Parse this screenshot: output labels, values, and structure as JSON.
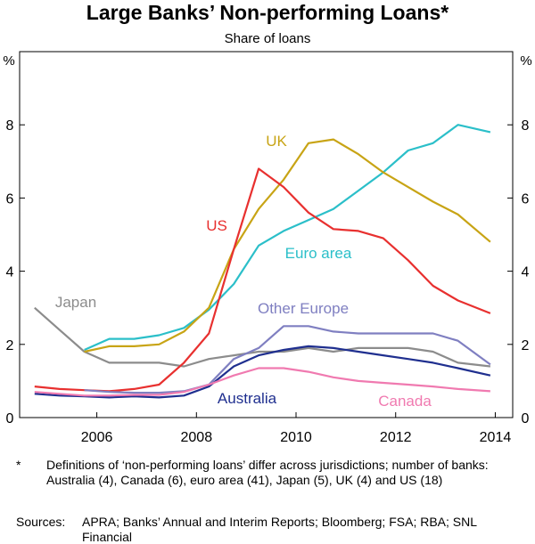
{
  "chart_data": {
    "type": "line",
    "title": "Large Banks’ Non-performing Loans*",
    "subtitle": "Share of loans",
    "y_unit": "%",
    "x": [
      2004.75,
      2005.25,
      2005.75,
      2006.25,
      2006.75,
      2007.25,
      2007.75,
      2008.25,
      2008.75,
      2009.25,
      2009.75,
      2010.25,
      2010.75,
      2011.25,
      2011.75,
      2012.25,
      2012.75,
      2013.25,
      2013.9
    ],
    "xlim": [
      2004.45,
      2014.35
    ],
    "xticks": [
      2006,
      2008,
      2010,
      2012,
      2014
    ],
    "ylim": [
      0,
      10
    ],
    "yticks": [
      0,
      2,
      4,
      6,
      8
    ],
    "series": [
      {
        "name": "Japan",
        "color": "#8c8c8c",
        "values": [
          3.0,
          2.4,
          1.8,
          1.5,
          1.5,
          1.5,
          1.4,
          1.6,
          1.7,
          1.8,
          1.8,
          1.9,
          1.8,
          1.9,
          1.9,
          1.9,
          1.8,
          1.5,
          1.4
        ]
      },
      {
        "name": "Euro area",
        "color": "#2bbfc9",
        "values": [
          null,
          null,
          1.85,
          2.15,
          2.15,
          2.25,
          2.45,
          2.95,
          3.65,
          4.7,
          5.1,
          5.4,
          5.7,
          6.2,
          6.7,
          7.3,
          7.5,
          8.0,
          7.8
        ]
      },
      {
        "name": "UK",
        "color": "#c8a415",
        "values": [
          null,
          null,
          1.8,
          1.95,
          1.95,
          2.0,
          2.35,
          3.0,
          4.6,
          5.7,
          6.5,
          7.5,
          7.6,
          7.2,
          6.7,
          6.3,
          5.9,
          5.55,
          4.8
        ]
      },
      {
        "name": "US",
        "color": "#e8302f",
        "values": [
          0.85,
          0.78,
          0.75,
          0.72,
          0.78,
          0.9,
          1.5,
          2.3,
          4.6,
          6.8,
          6.3,
          5.6,
          5.15,
          5.1,
          4.9,
          4.3,
          3.6,
          3.2,
          2.85
        ]
      },
      {
        "name": "Other Europe",
        "color": "#7f7fc1",
        "values": [
          null,
          null,
          0.75,
          0.7,
          0.68,
          0.68,
          0.72,
          0.9,
          1.6,
          1.9,
          2.5,
          2.5,
          2.35,
          2.3,
          2.3,
          2.3,
          2.3,
          2.1,
          1.45
        ]
      },
      {
        "name": "Australia",
        "color": "#1f2f8f",
        "values": [
          0.65,
          0.6,
          0.58,
          0.55,
          0.58,
          0.55,
          0.6,
          0.85,
          1.4,
          1.7,
          1.85,
          1.95,
          1.9,
          1.8,
          1.7,
          1.6,
          1.5,
          1.35,
          1.15
        ]
      },
      {
        "name": "Canada",
        "color": "#f07ab0",
        "values": [
          0.7,
          0.65,
          0.6,
          0.6,
          0.62,
          0.62,
          0.7,
          0.9,
          1.15,
          1.35,
          1.35,
          1.25,
          1.1,
          1.0,
          0.95,
          0.9,
          0.85,
          0.78,
          0.72
        ]
      }
    ],
    "footnote_marker": "*",
    "footnote": "Definitions of ‘non-performing loans’ differ across jurisdictions; number of banks: Australia (4), Canada (6), euro area (41), Japan (5), UK (4) and US (18)",
    "sources_label": "Sources:",
    "sources": "APRA; Banks’ Annual and Interim Reports; Bloomberg; FSA; RBA; SNL Financial"
  }
}
